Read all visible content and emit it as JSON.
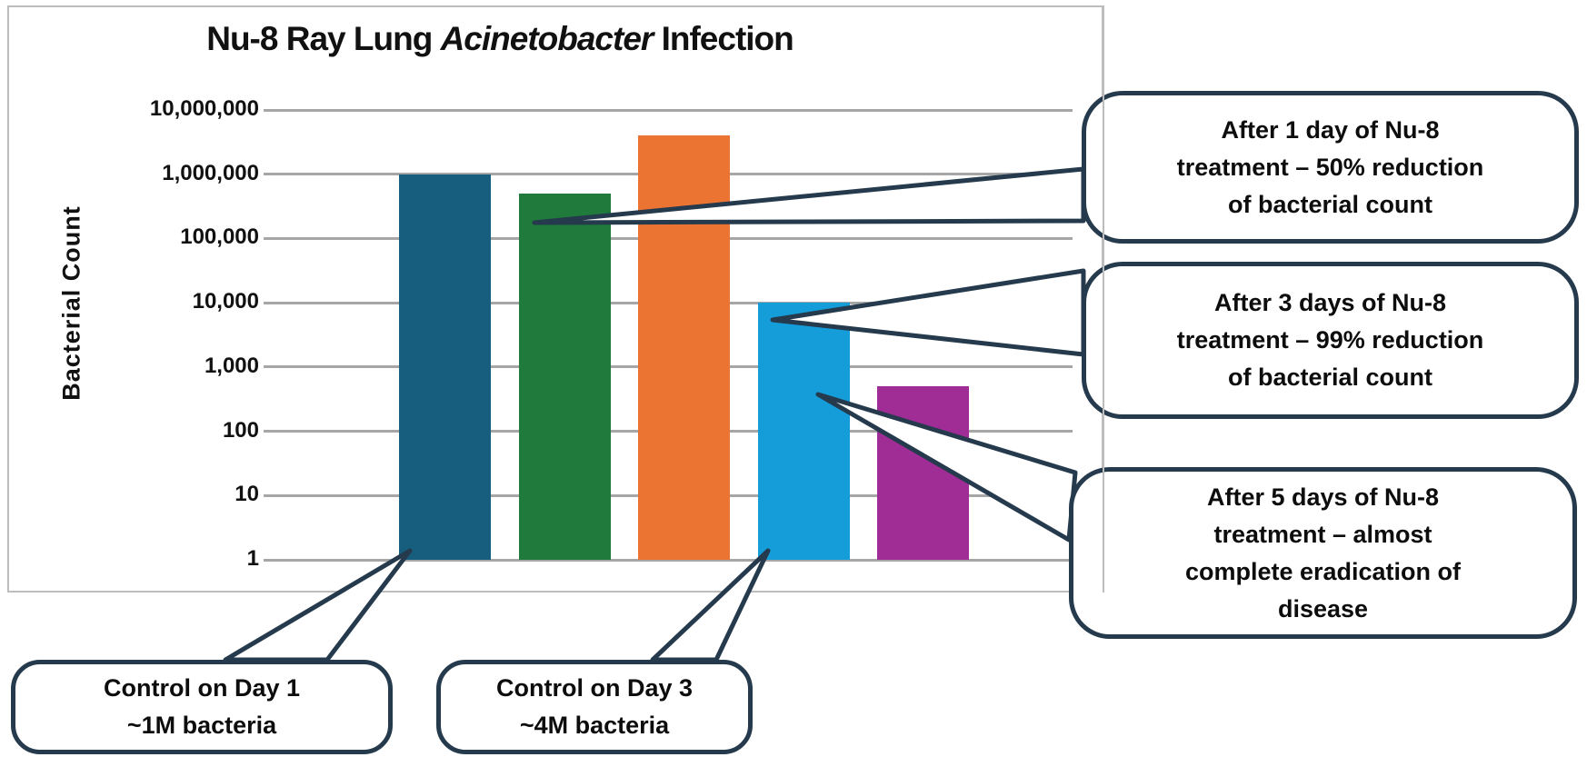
{
  "title": {
    "pre": "Nu-8 Ray Lung ",
    "em": "Acinetobacter",
    "post": " Infection"
  },
  "y_axis": {
    "title": "Bacterial Count",
    "ticks": [
      "10,000,000",
      "1,000,000",
      "100,000",
      "10,000",
      "1,000",
      "100",
      "10",
      "1"
    ]
  },
  "chart_data": {
    "type": "bar",
    "title": "Nu-8 Ray Lung Acinetobacter Infection",
    "ylabel": "Bacterial Count",
    "yscale": "log",
    "ylim": [
      1,
      10000000
    ],
    "grid": true,
    "ytick_labels": [
      "10,000,000",
      "1,000,000",
      "100,000",
      "10,000",
      "1,000",
      "100",
      "10",
      "1"
    ],
    "ytick_values": [
      10000000,
      1000000,
      100000,
      10000,
      1000,
      100,
      10,
      1
    ],
    "categories": [
      "Control on Day 1",
      "After 1 day of Nu-8",
      "Control on Day 3",
      "After 3 days of Nu-8",
      "After 5 days of Nu-8"
    ],
    "values": [
      1000000,
      500000,
      4000000,
      10000,
      500
    ],
    "bar_colors": [
      "#175E7E",
      "#1F7A3B",
      "#EC7432",
      "#159DD9",
      "#A02D96"
    ],
    "legend": "none"
  },
  "colors": {
    "callout_border": "#253A4C",
    "gridline": "#A6A6A6",
    "frame": "#BDBDBD",
    "background": "#FFFFFF"
  },
  "callouts": [
    {
      "id": "after-1-day",
      "lines": [
        "After 1 day of Nu-8",
        "treatment – 50% reduction",
        "of bacterial count"
      ],
      "text": "After 1 day of Nu-8 treatment – 50% reduction of bacterial count",
      "points_to": "green-bar"
    },
    {
      "id": "after-3-days",
      "lines": [
        "After 3 days of Nu-8",
        "treatment – 99% reduction",
        "of bacterial count"
      ],
      "text": "After 3 days of Nu-8 treatment – 99% reduction of bacterial count",
      "points_to": "light-blue-bar"
    },
    {
      "id": "after-5-days",
      "lines": [
        "After 5 days of Nu-8",
        "treatment – almost",
        "complete eradication of",
        "disease"
      ],
      "text": "After 5 days of Nu-8 treatment – almost complete eradication of disease",
      "points_to": "purple-bar"
    },
    {
      "id": "control-day-1",
      "lines": [
        "Control on Day 1",
        "~1M bacteria"
      ],
      "text": "Control on Day 1 ~1M bacteria",
      "points_to": "dark-blue-bar"
    },
    {
      "id": "control-day-3",
      "lines": [
        "Control on Day 3",
        "~4M bacteria"
      ],
      "text": "Control on Day 3 ~4M bacteria",
      "points_to": "orange-bar"
    }
  ]
}
